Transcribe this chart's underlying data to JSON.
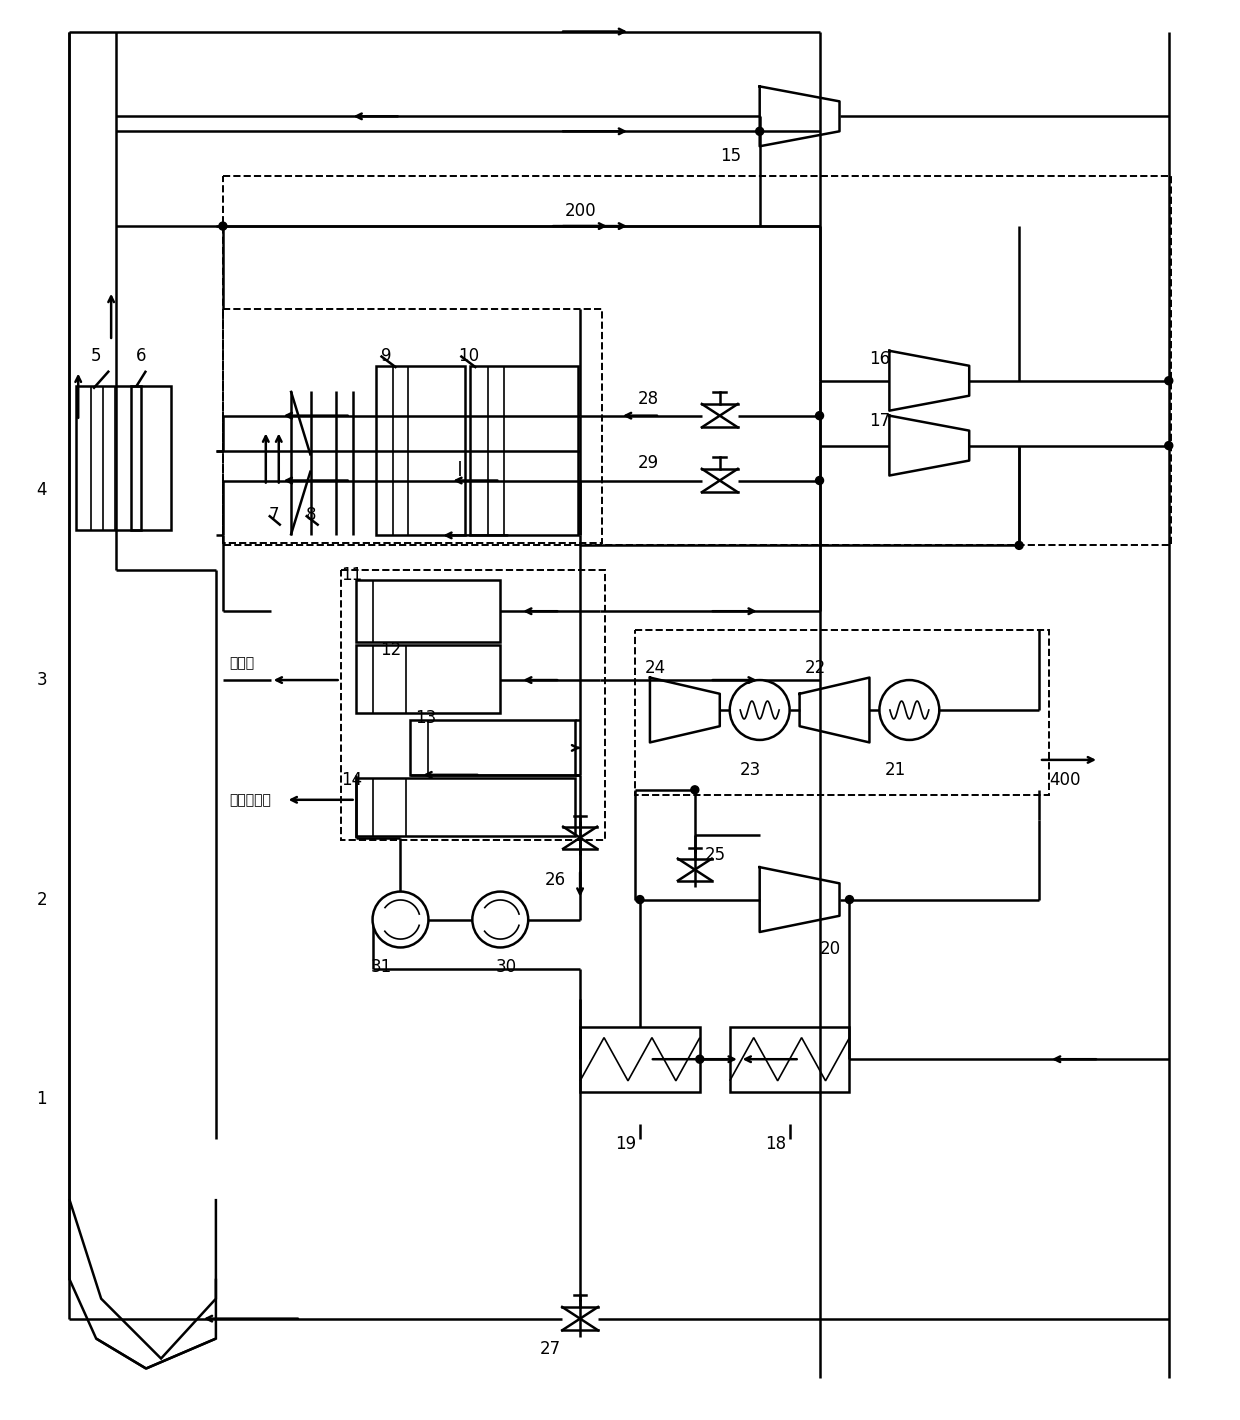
{
  "bg_color": "#ffffff",
  "lc": "#000000",
  "lw": 1.8,
  "thin": 1.2
}
